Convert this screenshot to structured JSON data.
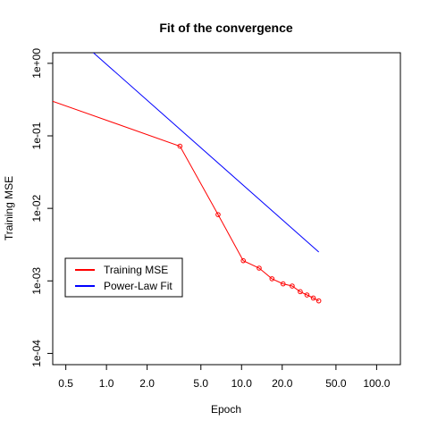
{
  "chart_data": {
    "type": "line",
    "title": "Fit of the convergence",
    "xlabel": "Epoch",
    "ylabel": "Training MSE",
    "x_scale": "log",
    "y_scale": "log",
    "xlim": [
      0.4,
      150
    ],
    "ylim": [
      7e-05,
      1.4
    ],
    "x_ticks": [
      {
        "value": 0.5,
        "label": "0.5"
      },
      {
        "value": 1,
        "label": "1.0"
      },
      {
        "value": 2,
        "label": "2.0"
      },
      {
        "value": 5,
        "label": "5.0"
      },
      {
        "value": 10,
        "label": "10.0"
      },
      {
        "value": 20,
        "label": "20.0"
      },
      {
        "value": 50,
        "label": "50.0"
      },
      {
        "value": 100,
        "label": "100.0"
      }
    ],
    "y_ticks": [
      {
        "value": 1,
        "label": "1e+00"
      },
      {
        "value": 0.1,
        "label": "1e-01"
      },
      {
        "value": 0.01,
        "label": "1e-02"
      },
      {
        "value": 0.001,
        "label": "1e-03"
      },
      {
        "value": 0.0001,
        "label": "1e-04"
      }
    ],
    "grid": false,
    "legend_position": "bottom-left",
    "series": [
      {
        "name": "Training MSE",
        "color": "#ff0000",
        "line_from": {
          "x": 0.4,
          "y": 0.3
        },
        "x": [
          3.5,
          6.7,
          10.3,
          13.5,
          16.8,
          20.3,
          23.7,
          27.2,
          30.5,
          34.0,
          37.3
        ],
        "y": [
          0.072,
          0.0082,
          0.0019,
          0.0015,
          0.00107,
          0.00091,
          0.00085,
          0.00071,
          0.00064,
          0.00058,
          0.00053
        ],
        "markers": "circle-open"
      },
      {
        "name": "Power-Law Fit",
        "color": "#0000ff",
        "x": [
          0.8,
          37.3
        ],
        "y": [
          1.4,
          0.0025
        ],
        "markers": "none"
      }
    ]
  }
}
